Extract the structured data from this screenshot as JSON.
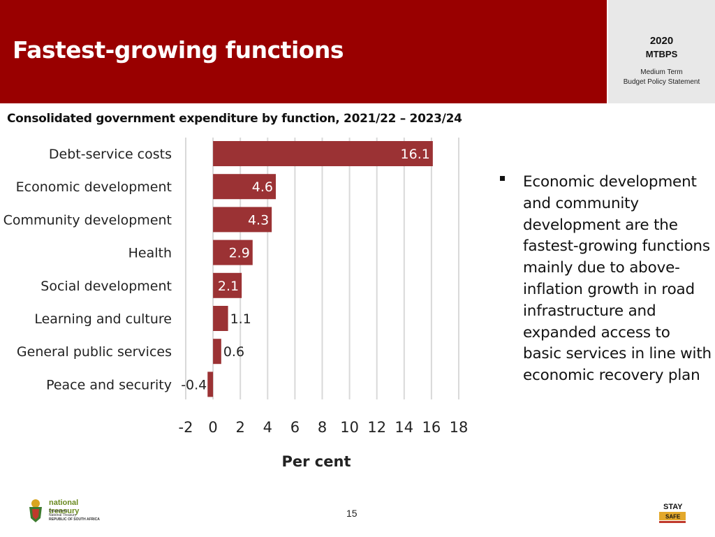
{
  "header": {
    "title": "Fastest-growing functions",
    "badge": {
      "year": "2020",
      "acronym": "MTBPS",
      "line1": "Medium Term",
      "line2": "Budget Policy Statement"
    }
  },
  "subtitle": "Consolidated government expenditure by function, 2021/22 – 2023/24",
  "bullet": "Economic development and community development are the fastest-growing functions mainly due to above-inflation growth in road infrastructure and expanded access to basic services in line with economic recovery plan",
  "footer": {
    "logo_name": "national treasury",
    "logo_line1": "Department:",
    "logo_line2": "National Treasury",
    "logo_line3": "REPUBLIC OF SOUTH AFRICA",
    "page_number": "15",
    "stay_safe_top": "STAY",
    "stay_safe_bottom": "SAFE"
  },
  "colors": {
    "header_bg": "#990000",
    "bar": "#9b3234",
    "bar_label_inside": "#ffffff",
    "grid": "#d9d9d9"
  },
  "chart_data": {
    "type": "bar",
    "orientation": "horizontal",
    "categories": [
      "Debt-service costs",
      "Economic development",
      "Community development",
      "Health",
      "Social development",
      "Learning and culture",
      "General public services",
      "Peace and security"
    ],
    "values": [
      16.1,
      4.6,
      4.3,
      2.9,
      2.1,
      1.1,
      0.6,
      -0.4
    ],
    "value_labels": [
      "16.1",
      "4.6",
      "4.3",
      "2.9",
      "2.1",
      "1.1",
      "0.6",
      "-0.4"
    ],
    "xlabel": "Per cent",
    "xlim": [
      -2,
      18
    ],
    "xticks": [
      "-2",
      "0",
      "2",
      "4",
      "6",
      "8",
      "10",
      "12",
      "14",
      "16",
      "18"
    ],
    "grid": true
  }
}
